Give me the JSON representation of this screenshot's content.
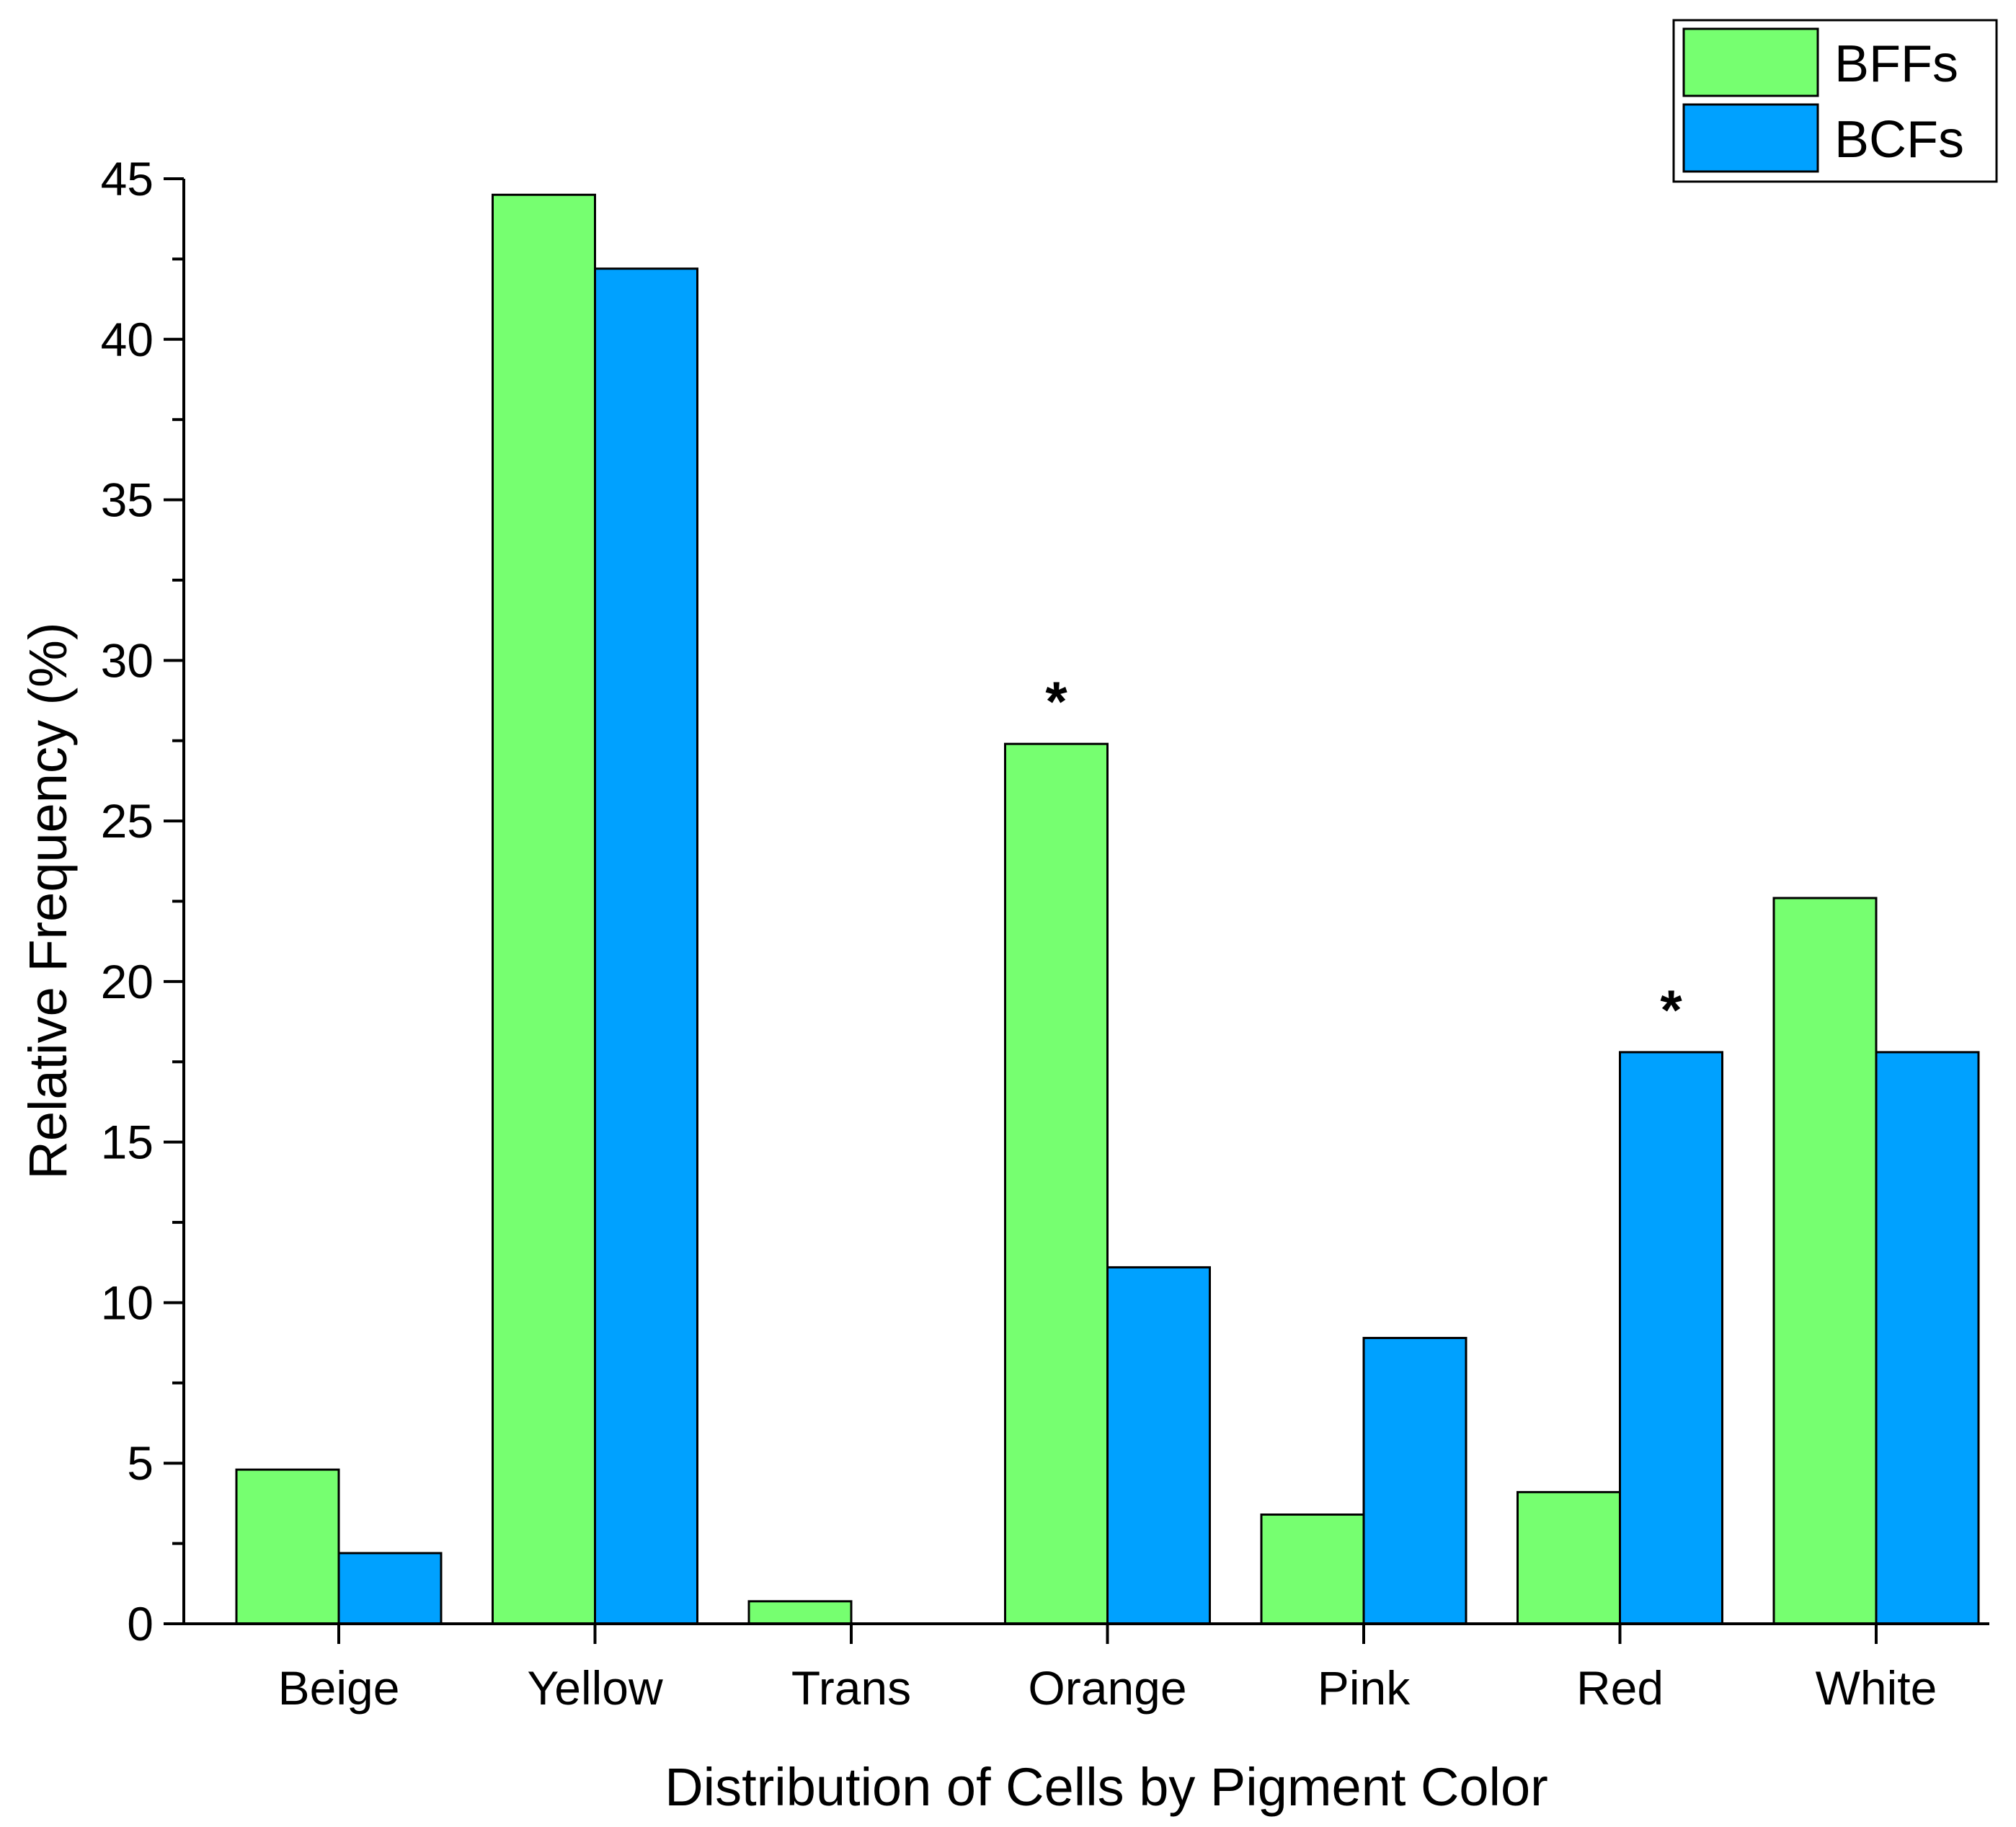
{
  "chart_data": {
    "type": "bar",
    "categories": [
      "Beige",
      "Yellow",
      "Trans",
      "Orange",
      "Pink",
      "Red",
      "White"
    ],
    "series": [
      {
        "name": "BFFs",
        "color": "#76ff70",
        "values": [
          4.8,
          44.5,
          0.7,
          27.4,
          3.4,
          4.1,
          22.6
        ]
      },
      {
        "name": "BCFs",
        "color": "#00a1ff",
        "values": [
          2.2,
          42.2,
          0,
          11.1,
          8.9,
          17.8,
          17.8
        ]
      }
    ],
    "xlabel": "Distribution of Cells by Pigment Color",
    "ylabel": "Relative Frequency (%)",
    "ylim": [
      0,
      45
    ],
    "yticks": [
      0,
      5,
      10,
      15,
      20,
      25,
      30,
      35,
      40,
      45
    ],
    "grid": false,
    "legend": "top-right",
    "annotations": [
      {
        "category": "Orange",
        "series": "BFFs",
        "text": "*"
      },
      {
        "category": "Red",
        "series": "BCFs",
        "text": "*"
      }
    ]
  }
}
